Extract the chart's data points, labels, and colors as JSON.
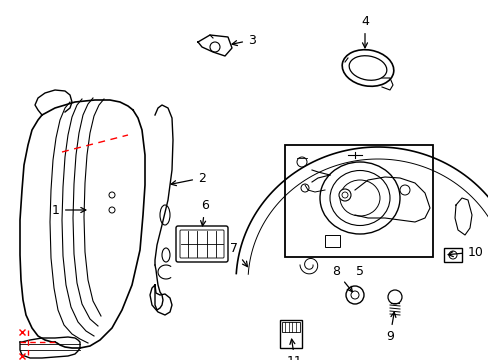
{
  "bg_color": "#ffffff",
  "lc": "#000000",
  "rc": "#ff0000",
  "figsize": [
    4.89,
    3.6
  ],
  "dpi": 100
}
